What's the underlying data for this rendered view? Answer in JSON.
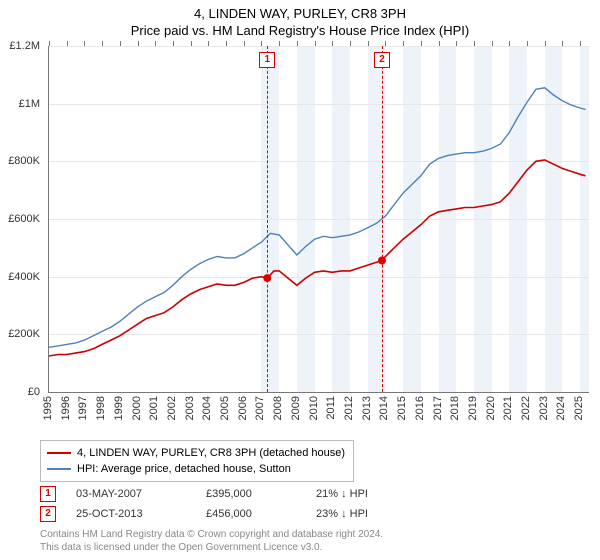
{
  "title": "4, LINDEN WAY, PURLEY, CR8 3PH",
  "subtitle": "Price paid vs. HM Land Registry's House Price Index (HPI)",
  "chart": {
    "type": "line",
    "background_color": "#ffffff",
    "grid_color": "#e6e6e6",
    "axis_color": "#777777",
    "band_color": "#eef3f9",
    "font_size_title": 13,
    "font_size_axis": 11,
    "xlim": [
      1995,
      2025.5
    ],
    "ylim": [
      0,
      1200000
    ],
    "ytick_step": 200000,
    "ylabels": [
      "£0",
      "£200K",
      "£400K",
      "£600K",
      "£800K",
      "£1M",
      "£1.2M"
    ],
    "xtick_step": 1,
    "xlabels": [
      "1995",
      "1996",
      "1997",
      "1998",
      "1999",
      "2000",
      "2001",
      "2002",
      "2003",
      "2004",
      "2005",
      "2006",
      "2007",
      "2008",
      "2009",
      "2010",
      "2011",
      "2012",
      "2013",
      "2014",
      "2015",
      "2016",
      "2017",
      "2018",
      "2019",
      "2020",
      "2021",
      "2022",
      "2023",
      "2024",
      "2025"
    ],
    "band_years": [
      2007,
      2009,
      2011,
      2013,
      2015,
      2017,
      2019,
      2021,
      2023,
      2025
    ],
    "series": [
      {
        "name": "property",
        "label": "4, LINDEN WAY, PURLEY, CR8 3PH (detached house)",
        "color": "#cc0000",
        "line_width": 1.6,
        "data": [
          [
            1995,
            125000
          ],
          [
            1995.5,
            130000
          ],
          [
            1996,
            130000
          ],
          [
            1996.5,
            135000
          ],
          [
            1997,
            140000
          ],
          [
            1997.5,
            150000
          ],
          [
            1998,
            165000
          ],
          [
            1998.5,
            180000
          ],
          [
            1999,
            195000
          ],
          [
            1999.5,
            215000
          ],
          [
            2000,
            235000
          ],
          [
            2000.5,
            255000
          ],
          [
            2001,
            265000
          ],
          [
            2001.5,
            275000
          ],
          [
            2002,
            295000
          ],
          [
            2002.5,
            320000
          ],
          [
            2003,
            340000
          ],
          [
            2003.5,
            355000
          ],
          [
            2004,
            365000
          ],
          [
            2004.5,
            375000
          ],
          [
            2005,
            370000
          ],
          [
            2005.5,
            370000
          ],
          [
            2006,
            380000
          ],
          [
            2006.5,
            395000
          ],
          [
            2007,
            400000
          ],
          [
            2007.33,
            395000
          ],
          [
            2007.7,
            420000
          ],
          [
            2008,
            420000
          ],
          [
            2008.5,
            395000
          ],
          [
            2009,
            370000
          ],
          [
            2009.5,
            395000
          ],
          [
            2010,
            415000
          ],
          [
            2010.5,
            420000
          ],
          [
            2011,
            415000
          ],
          [
            2011.5,
            420000
          ],
          [
            2012,
            420000
          ],
          [
            2012.5,
            430000
          ],
          [
            2013,
            440000
          ],
          [
            2013.5,
            450000
          ],
          [
            2013.81,
            456000
          ],
          [
            2014,
            470000
          ],
          [
            2014.5,
            500000
          ],
          [
            2015,
            530000
          ],
          [
            2015.5,
            555000
          ],
          [
            2016,
            580000
          ],
          [
            2016.5,
            610000
          ],
          [
            2017,
            625000
          ],
          [
            2017.5,
            630000
          ],
          [
            2018,
            635000
          ],
          [
            2018.5,
            640000
          ],
          [
            2019,
            640000
          ],
          [
            2019.5,
            645000
          ],
          [
            2020,
            650000
          ],
          [
            2020.5,
            660000
          ],
          [
            2021,
            690000
          ],
          [
            2021.5,
            730000
          ],
          [
            2022,
            770000
          ],
          [
            2022.5,
            800000
          ],
          [
            2023,
            805000
          ],
          [
            2023.5,
            790000
          ],
          [
            2024,
            775000
          ],
          [
            2024.5,
            765000
          ],
          [
            2025,
            755000
          ],
          [
            2025.3,
            750000
          ]
        ]
      },
      {
        "name": "hpi",
        "label": "HPI: Average price, detached house, Sutton",
        "color": "#4f81bd",
        "line_width": 1.4,
        "data": [
          [
            1995,
            155000
          ],
          [
            1995.5,
            160000
          ],
          [
            1996,
            165000
          ],
          [
            1996.5,
            170000
          ],
          [
            1997,
            180000
          ],
          [
            1997.5,
            195000
          ],
          [
            1998,
            210000
          ],
          [
            1998.5,
            225000
          ],
          [
            1999,
            245000
          ],
          [
            1999.5,
            270000
          ],
          [
            2000,
            295000
          ],
          [
            2000.5,
            315000
          ],
          [
            2001,
            330000
          ],
          [
            2001.5,
            345000
          ],
          [
            2002,
            370000
          ],
          [
            2002.5,
            400000
          ],
          [
            2003,
            425000
          ],
          [
            2003.5,
            445000
          ],
          [
            2004,
            460000
          ],
          [
            2004.5,
            470000
          ],
          [
            2005,
            465000
          ],
          [
            2005.5,
            465000
          ],
          [
            2006,
            480000
          ],
          [
            2006.5,
            500000
          ],
          [
            2007,
            520000
          ],
          [
            2007.5,
            550000
          ],
          [
            2008,
            545000
          ],
          [
            2008.5,
            510000
          ],
          [
            2009,
            475000
          ],
          [
            2009.5,
            505000
          ],
          [
            2010,
            530000
          ],
          [
            2010.5,
            540000
          ],
          [
            2011,
            535000
          ],
          [
            2011.5,
            540000
          ],
          [
            2012,
            545000
          ],
          [
            2012.5,
            555000
          ],
          [
            2013,
            570000
          ],
          [
            2013.5,
            585000
          ],
          [
            2014,
            610000
          ],
          [
            2014.5,
            650000
          ],
          [
            2015,
            690000
          ],
          [
            2015.5,
            720000
          ],
          [
            2016,
            750000
          ],
          [
            2016.5,
            790000
          ],
          [
            2017,
            810000
          ],
          [
            2017.5,
            820000
          ],
          [
            2018,
            825000
          ],
          [
            2018.5,
            830000
          ],
          [
            2019,
            830000
          ],
          [
            2019.5,
            835000
          ],
          [
            2020,
            845000
          ],
          [
            2020.5,
            860000
          ],
          [
            2021,
            900000
          ],
          [
            2021.5,
            955000
          ],
          [
            2022,
            1005000
          ],
          [
            2022.5,
            1050000
          ],
          [
            2023,
            1055000
          ],
          [
            2023.5,
            1030000
          ],
          [
            2024,
            1010000
          ],
          [
            2024.5,
            995000
          ],
          [
            2025,
            985000
          ],
          [
            2025.3,
            980000
          ]
        ]
      }
    ],
    "events": [
      {
        "n": "1",
        "x": 2007.33,
        "marker_y": 395000
      },
      {
        "n": "2",
        "x": 2013.81,
        "marker_y": 456000
      }
    ]
  },
  "legend": {
    "items": [
      {
        "color": "#cc0000",
        "label": "4, LINDEN WAY, PURLEY, CR8 3PH (detached house)"
      },
      {
        "color": "#4f81bd",
        "label": "HPI: Average price, detached house, Sutton"
      }
    ]
  },
  "sales": [
    {
      "n": "1",
      "date": "03-MAY-2007",
      "price": "£395,000",
      "delta": "21% ↓ HPI"
    },
    {
      "n": "2",
      "date": "25-OCT-2013",
      "price": "£456,000",
      "delta": "23% ↓ HPI"
    }
  ],
  "footer": {
    "line1": "Contains HM Land Registry data © Crown copyright and database right 2024.",
    "line2": "This data is licensed under the Open Government Licence v3.0."
  }
}
